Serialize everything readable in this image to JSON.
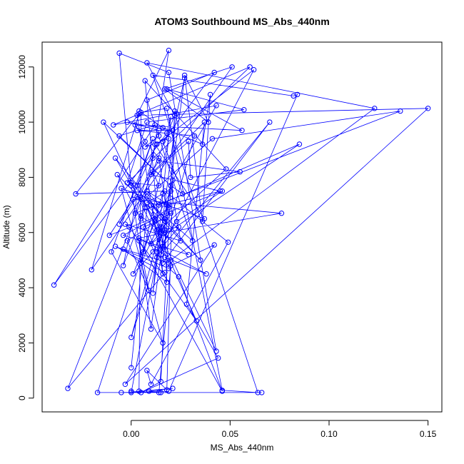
{
  "chart_data": {
    "type": "line",
    "title": "ATOM3 Southbound MS_Abs_440nm",
    "xlabel": "MS_Abs_440nm",
    "ylabel": "Altitude (m)",
    "xlim": [
      -0.045,
      0.157
    ],
    "ylim": [
      -500,
      12900
    ],
    "xticks": [
      {
        "value": 0.0,
        "label": "0.00"
      },
      {
        "value": 0.05,
        "label": "0.05"
      },
      {
        "value": 0.1,
        "label": "0.10"
      },
      {
        "value": 0.15,
        "label": "0.15"
      }
    ],
    "yticks": [
      {
        "value": 0,
        "label": "0"
      },
      {
        "value": 2000,
        "label": "2000"
      },
      {
        "value": 4000,
        "label": "4000"
      },
      {
        "value": 6000,
        "label": "6000"
      },
      {
        "value": 8000,
        "label": "8000"
      },
      {
        "value": 10000,
        "label": "10000"
      },
      {
        "value": 12000,
        "label": "12000"
      }
    ],
    "grid": false,
    "color": "#0000ff",
    "series": [
      {
        "x": [
          0.0,
          0.015,
          0.009,
          0.021,
          0.004,
          0.005,
          0.018,
          0.046,
          0.064,
          0.011,
          0.082,
          0.084,
          0.019,
          -0.005,
          0.014,
          0.02,
          0.042,
          -0.003,
          0.15,
          0.003,
          0.016,
          0.007,
          0.048,
          0.016,
          0.0,
          0.066,
          -0.017,
          0.016,
          0.008,
          0.019,
          0.012,
          -0.004,
          0.029,
          0.005,
          0.013,
          0.023,
          0.046,
          -0.011,
          0.001,
          0.076,
          0.017,
          0.004,
          0.038,
          0.017,
          0.02,
          0.123,
          0.008,
          0.022,
          -0.032,
          0.017,
          -0.008,
          0.019,
          0.024,
          0.046,
          0.004,
          0.009,
          -0.002,
          0.02,
          0.015,
          0.01,
          0.085,
          0.014,
          0.008,
          0.019,
          0.016,
          0.07,
          0.015,
          0.032,
          0.003,
          0.021,
          -0.002,
          0.014,
          0.014,
          0.007,
          0.019,
          0.005,
          0.013,
          0.015,
          0.062,
          0.013,
          -0.006,
          0.014,
          0.055,
          0.03,
          0.029,
          0.01,
          0.045,
          0.018,
          0.021,
          0.043,
          -0.009,
          0.06,
          -0.002,
          0.008,
          0.057,
          0.018,
          0.056,
          0.002,
          0.007,
          0.014,
          0.018,
          0.017,
          0.008,
          0.041,
          0.136,
          0.002,
          0.011,
          0.019,
          0.004,
          0.016,
          0.036,
          0.04,
          0.036,
          0.027,
          0.039,
          0.017,
          0.051,
          -0.02,
          0.004,
          -0.028,
          0.017,
          0.049,
          0.01,
          0.008,
          0.018,
          0.022,
          0.015,
          0.005,
          0.044,
          0.028,
          0.037,
          0.011,
          0.014,
          0.0,
          0.035,
          -0.007,
          0.005,
          0.012,
          0.037,
          -0.005,
          0.016,
          -0.01,
          0.011,
          0.003,
          0.033,
          -0.001,
          -0.003,
          0.025,
          0.02,
          0.026,
          0.016,
          0.042,
          0.008,
          0.031,
          0.01,
          0.014,
          0.024,
          0.016,
          0.015,
          0.005,
          0.003,
          -0.004,
          0.007,
          -0.008,
          0.017,
          0.006,
          0.013,
          0.0,
          0.02,
          0.012,
          0.001,
          0.011,
          0.017,
          0.018,
          -0.004,
          0.019,
          -0.014,
          0.02,
          -0.006,
          0.012,
          -0.039,
          0.018,
          0.02,
          0.011,
          0.023,
          0.027,
          0.01,
          0.0,
          -0.006,
          0.019,
          0.043,
          0.008,
          0.006,
          0.0
        ],
        "y": [
          250,
          200,
          250,
          350,
          250,
          10350,
          10500,
          280,
          200,
          11700,
          10950,
          11000,
          250,
          200,
          200,
          4800,
          5550,
          500,
          10500,
          10250,
          4500,
          11500,
          8300,
          6200,
          200,
          200,
          200,
          7400,
          7100,
          6900,
          6500,
          5900,
          5200,
          6600,
          5300,
          6400,
          7500,
          5900,
          7200,
          6700,
          6000,
          5800,
          4500,
          5100,
          5000,
          10500,
          12150,
          10250,
          350,
          4550,
          5500,
          4700,
          4400,
          250,
          5700,
          3900,
          5700,
          6700,
          6000,
          5600,
          9200,
          7000,
          7500,
          7000,
          4900,
          10000,
          5200,
          9500,
          9700,
          9700,
          10000,
          9700,
          9500,
          9100,
          9400,
          4900,
          6100,
          5400,
          11900,
          9200,
          6300,
          8600,
          8200,
          8000,
          9300,
          8100,
          7500,
          7000,
          7900,
          10600,
          9900,
          12000,
          7800,
          10000,
          10450,
          11200,
          9700,
          9900,
          9300,
          8700,
          6700,
          6400,
          7300,
          9400,
          10400,
          6700,
          8700,
          12600,
          10400,
          9800,
          9200,
          11000,
          6400,
          11700,
          10000,
          11200,
          12000,
          4650,
          10300,
          7400,
          7500,
          5650,
          500,
          1000,
          300,
          10400,
          600,
          200,
          1450,
          3400,
          10000,
          8200,
          7700,
          7800,
          5000,
          8100,
          6500,
          9200,
          6500,
          7600,
          2000,
          5300,
          9400,
          7700,
          2800,
          6200,
          6300,
          5700,
          7700,
          7400,
          9300,
          11800,
          10800,
          5700,
          7000,
          6100,
          6200,
          5500,
          6200,
          7200,
          7300,
          4800,
          6900,
          8700,
          6500,
          6200,
          5100,
          2200,
          7500,
          6400,
          4500,
          5300,
          6100,
          4200,
          5400,
          4900,
          10000,
          7700,
          9500,
          9900,
          4100,
          9600,
          10200,
          3800,
          10300,
          11600,
          2500,
          7700,
          12500,
          11800,
          1700,
          6900,
          5300,
          1100
        ]
      }
    ]
  }
}
